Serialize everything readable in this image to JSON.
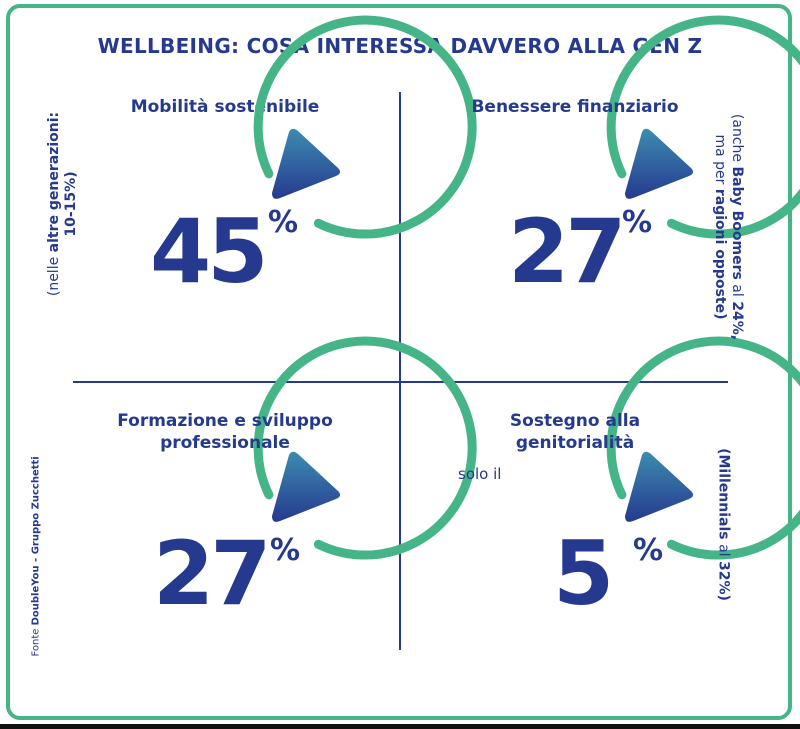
{
  "title": "WELLBEING: COSA INTERESSA DAVVERO ALLA GEN Z",
  "colors": {
    "accent": "#45b487",
    "navy": "#253a8f",
    "triangle_top": "#3a7ca6"
  },
  "quadrants": [
    {
      "label": "Mobilità sostenibile",
      "value": "45",
      "unit": "%",
      "note": {
        "prefix": "(nelle ",
        "bold": "altre generazioni:",
        "line2": "10-15%)"
      }
    },
    {
      "label": "Benessere finanziario",
      "value": "27",
      "unit": "%",
      "note": {
        "line1_a": "(anche ",
        "line1_b": "Baby Boomers",
        "line1_c": " al ",
        "line1_d": "24%,",
        "line2_a": "ma per ",
        "line2_b": "ragioni opposte)"
      }
    },
    {
      "label_line1": "Formazione e sviluppo",
      "label_line2": "professionale",
      "value": "27",
      "unit": "%"
    },
    {
      "label_line1": "Sostegno alla",
      "label_line2": "genitorialità",
      "prefix": "solo il",
      "value": "5",
      "unit": "%",
      "note": {
        "a": "(Millennials",
        "b": " al ",
        "c": "32%)"
      }
    }
  ],
  "source": {
    "a": "Fonte ",
    "b": "DoubleYou - Gruppo Zucchetti"
  }
}
